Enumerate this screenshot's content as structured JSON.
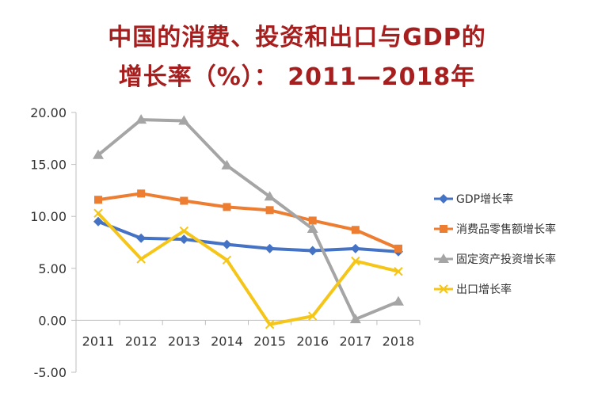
{
  "title_line1": "中国的消费、投资和出口与GDP的",
  "title_line2": "增长率（%）：  2011—2018年",
  "chart_data": {
    "type": "line",
    "title": "中国的消费、投资和出口与GDP的增长率（%）：  2011—2018年",
    "xlabel": "",
    "ylabel": "",
    "categories": [
      "2011",
      "2012",
      "2013",
      "2014",
      "2015",
      "2016",
      "2017",
      "2018"
    ],
    "ylim": [
      -5,
      20
    ],
    "yticks": [
      "20.00",
      "15.00",
      "10.00",
      "5.00",
      "0.00",
      "-5.00"
    ],
    "ytick_values": [
      20,
      15,
      10,
      5,
      0,
      -5
    ],
    "legend_position": "right",
    "grid": false,
    "series": [
      {
        "name": "GDP增长率",
        "color": "#4472c4",
        "marker": "diamond",
        "values": [
          9.5,
          7.9,
          7.8,
          7.3,
          6.9,
          6.7,
          6.9,
          6.6
        ]
      },
      {
        "name": "消费品零售额增长率",
        "color": "#ed7d31",
        "marker": "square",
        "values": [
          11.6,
          12.2,
          11.5,
          10.9,
          10.6,
          9.6,
          8.7,
          6.9
        ]
      },
      {
        "name": "固定资产投资增长率",
        "color": "#a5a5a5",
        "marker": "triangle",
        "values": [
          15.9,
          19.3,
          19.2,
          14.9,
          11.9,
          8.8,
          0.1,
          1.8
        ]
      },
      {
        "name": "出口增长率",
        "color": "#f5c518",
        "marker": "x",
        "values": [
          10.3,
          5.9,
          8.6,
          5.8,
          -0.4,
          0.4,
          5.7,
          4.7
        ]
      }
    ]
  }
}
